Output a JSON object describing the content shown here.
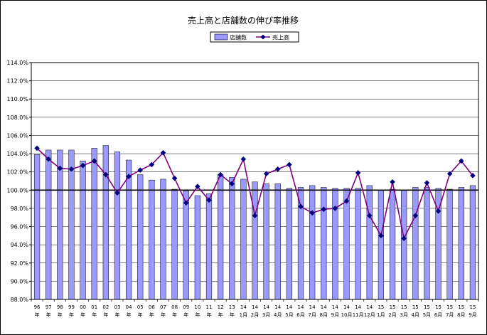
{
  "chart_data": {
    "type": "bar+line",
    "title": "売上高と店舗数の伸び率推移",
    "legend": [
      {
        "name": "店舗数",
        "kind": "bar"
      },
      {
        "name": "売上高",
        "kind": "line"
      }
    ],
    "legend_position": "top-center",
    "ylim": [
      88.0,
      114.0
    ],
    "ytick_step": 2.0,
    "ytick_labels": [
      "88.0%",
      "90.0%",
      "92.0%",
      "94.0%",
      "96.0%",
      "98.0%",
      "100.0%",
      "102.0%",
      "104.0%",
      "106.0%",
      "108.0%",
      "110.0%",
      "112.0%",
      "114.0%"
    ],
    "grid": true,
    "reference_line": 100.0,
    "categories": [
      [
        "96",
        "年"
      ],
      [
        "97",
        "年"
      ],
      [
        "98",
        "年"
      ],
      [
        "99",
        "年"
      ],
      [
        "00",
        "年"
      ],
      [
        "01",
        "年"
      ],
      [
        "02",
        "年"
      ],
      [
        "03",
        "年"
      ],
      [
        "04",
        "年"
      ],
      [
        "05",
        "年"
      ],
      [
        "06",
        "年"
      ],
      [
        "07",
        "年"
      ],
      [
        "08",
        "年"
      ],
      [
        "09",
        "年"
      ],
      [
        "10",
        "年"
      ],
      [
        "11",
        "年"
      ],
      [
        "12",
        "年"
      ],
      [
        "13",
        "年"
      ],
      [
        "14",
        "1月"
      ],
      [
        "14",
        "2月"
      ],
      [
        "14",
        "3月"
      ],
      [
        "14",
        "4月"
      ],
      [
        "14",
        "5月"
      ],
      [
        "14",
        "6月"
      ],
      [
        "14",
        "7月"
      ],
      [
        "14",
        "8月"
      ],
      [
        "14",
        "9月"
      ],
      [
        "14",
        "10月"
      ],
      [
        "14",
        "11月"
      ],
      [
        "14",
        "12月"
      ],
      [
        "15",
        "1月"
      ],
      [
        "15",
        "2月"
      ],
      [
        "15",
        "3月"
      ],
      [
        "15",
        "4月"
      ],
      [
        "15",
        "5月"
      ],
      [
        "15",
        "6月"
      ],
      [
        "15",
        "7月"
      ],
      [
        "15",
        "8月"
      ],
      [
        "15",
        "9月"
      ]
    ],
    "series": [
      {
        "name": "店舗数",
        "type": "bar",
        "color": "#9999ff",
        "values": [
          103.9,
          104.4,
          104.4,
          104.4,
          103.2,
          104.6,
          104.9,
          104.2,
          103.3,
          101.7,
          101.1,
          101.2,
          100.1,
          99.9,
          99.4,
          99.6,
          101.7,
          101.4,
          101.2,
          100.9,
          100.7,
          100.7,
          100.2,
          100.3,
          100.5,
          100.3,
          100.2,
          100.2,
          100.2,
          100.5,
          100.0,
          100.1,
          100.0,
          100.3,
          100.3,
          100.2,
          100.1,
          100.3,
          100.5
        ]
      },
      {
        "name": "売上高",
        "type": "line",
        "color": "#800080",
        "marker_color": "#000080",
        "values": [
          104.6,
          103.4,
          102.4,
          102.3,
          102.7,
          103.2,
          101.7,
          99.7,
          101.5,
          102.2,
          102.8,
          104.1,
          101.3,
          98.6,
          100.4,
          98.9,
          101.7,
          100.7,
          103.4,
          97.2,
          101.8,
          102.3,
          102.8,
          98.2,
          97.5,
          97.9,
          98.0,
          98.8,
          101.9,
          97.2,
          95.0,
          100.9,
          94.7,
          97.2,
          100.8,
          97.7,
          101.8,
          103.2,
          101.6
        ]
      }
    ]
  }
}
